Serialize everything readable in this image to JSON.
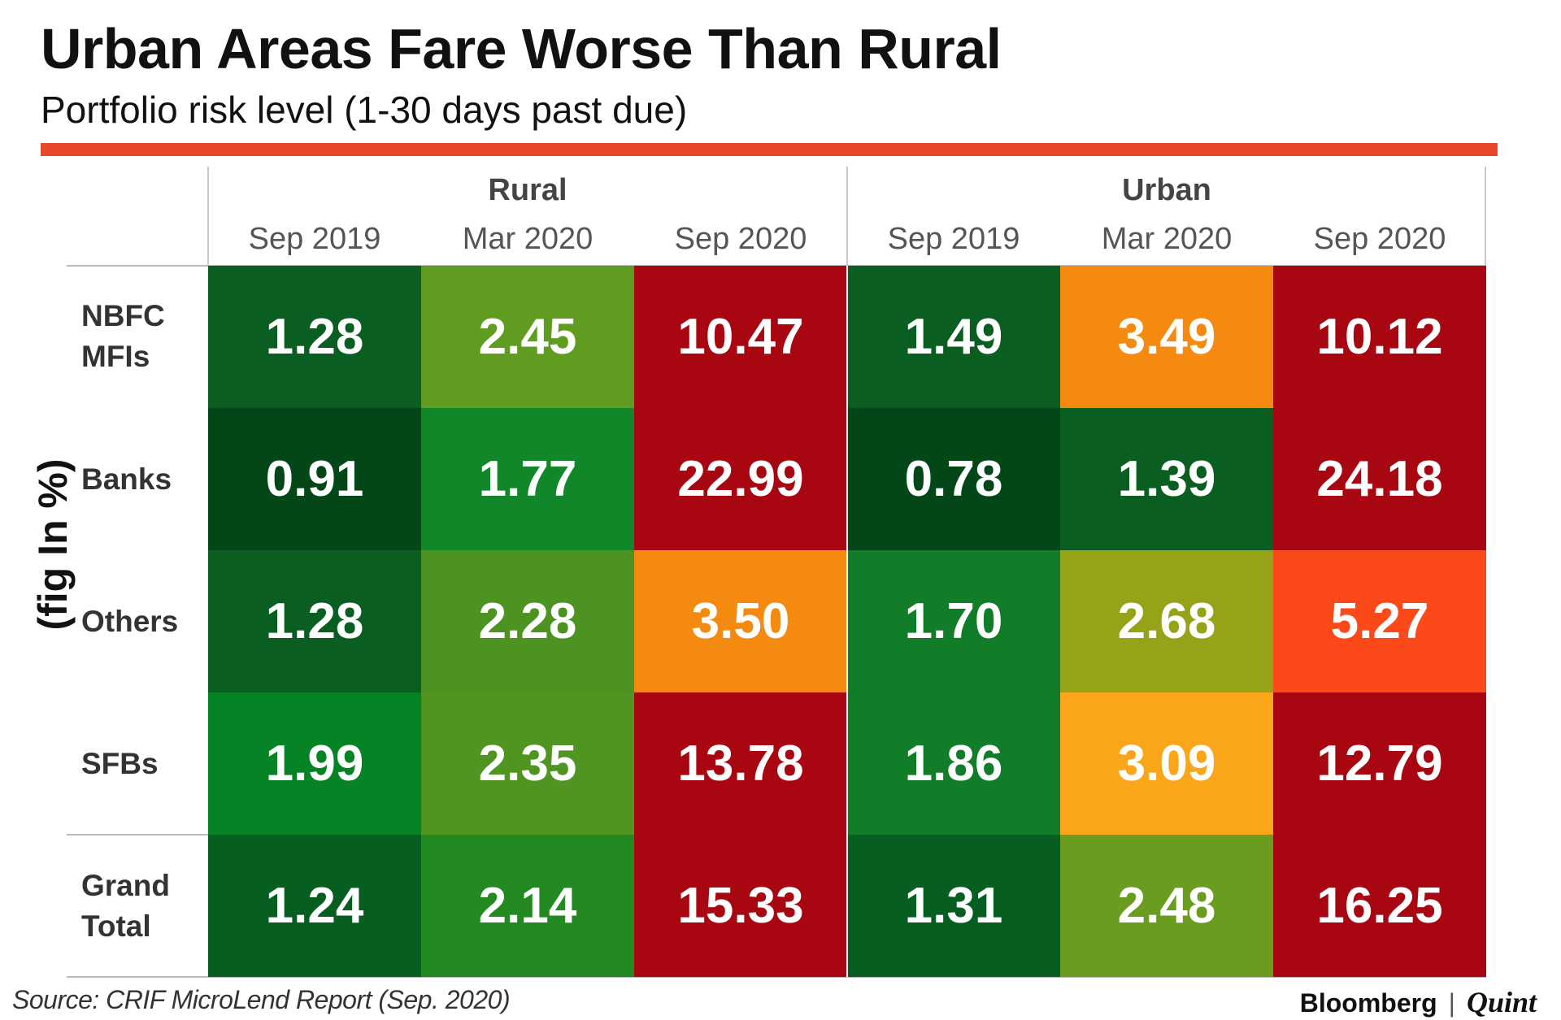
{
  "title": "Urban Areas Fare Worse Than Rural",
  "subtitle": "Portfolio risk level (1-30 days past due)",
  "y_axis_note": "(fig In %)",
  "source": "Source: CRIF MicroLend Report (Sep. 2020)",
  "logo": {
    "brand": "Bloomberg",
    "separator": "|",
    "suffix": "Quint"
  },
  "accent_color": "#e8492a",
  "chart_data": {
    "type": "table",
    "title": "Urban Areas Fare Worse Than Rural",
    "subtitle": "Portfolio risk level (1-30 days past due)",
    "unit": "%",
    "groups": [
      {
        "name": "Rural",
        "columns": [
          "Sep 2019",
          "Mar 2020",
          "Sep 2020"
        ]
      },
      {
        "name": "Urban",
        "columns": [
          "Sep 2019",
          "Mar 2020",
          "Sep 2020"
        ]
      }
    ],
    "rows": [
      {
        "label": "NBFC\nMFIs",
        "values": [
          "1.28",
          "2.45",
          "10.47",
          "1.49",
          "3.49",
          "10.12"
        ],
        "colors": [
          "#0a5e21",
          "#5f9c1f",
          "#a80712",
          "#0a5e21",
          "#f58a10",
          "#a80712"
        ]
      },
      {
        "label": "Banks",
        "values": [
          "0.91",
          "1.77",
          "22.99",
          "0.78",
          "1.39",
          "24.18"
        ],
        "colors": [
          "#034617",
          "#12872a",
          "#a80712",
          "#034617",
          "#0a5e21",
          "#a80712"
        ]
      },
      {
        "label": "Others",
        "values": [
          "1.28",
          "2.28",
          "3.50",
          "1.70",
          "2.68",
          "5.27"
        ],
        "colors": [
          "#0a5e21",
          "#4d9322",
          "#f58a10",
          "#117d29",
          "#96a217",
          "#fc4919"
        ]
      },
      {
        "label": "SFBs",
        "values": [
          "1.99",
          "2.35",
          "13.78",
          "1.86",
          "3.09",
          "12.79"
        ],
        "colors": [
          "#068425",
          "#509421",
          "#a80712",
          "#117d29",
          "#fba61a",
          "#a80712"
        ]
      },
      {
        "label": "Grand\nTotal",
        "values": [
          "1.24",
          "2.14",
          "15.33",
          "1.31",
          "2.48",
          "16.25"
        ],
        "colors": [
          "#075e21",
          "#238a22",
          "#a80712",
          "#075e21",
          "#6a9c20",
          "#a80712"
        ]
      }
    ]
  }
}
